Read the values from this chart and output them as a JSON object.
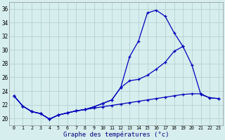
{
  "title": "Graphe des températures (°c)",
  "background_color": "#d6eeee",
  "grid_color": "#aecccc",
  "line_color": "#0000bb",
  "xlim": [
    -0.5,
    23.5
  ],
  "ylim": [
    19.0,
    37.0
  ],
  "yticks": [
    20,
    22,
    24,
    26,
    28,
    30,
    32,
    34,
    36
  ],
  "xticks": [
    0,
    1,
    2,
    3,
    4,
    5,
    6,
    7,
    8,
    9,
    10,
    11,
    12,
    13,
    14,
    15,
    16,
    17,
    18,
    19,
    20,
    21,
    22,
    23
  ],
  "curve_main_x": [
    0,
    1,
    2,
    3,
    4,
    5,
    6,
    7,
    8,
    9,
    10,
    11,
    12,
    13,
    14,
    15,
    16,
    17,
    18,
    19
  ],
  "curve_main_y": [
    23.3,
    21.8,
    21.0,
    20.7,
    19.9,
    20.5,
    20.8,
    21.1,
    21.3,
    21.7,
    22.2,
    22.7,
    24.5,
    29.0,
    31.3,
    35.4,
    35.8,
    34.9,
    32.5,
    30.5
  ],
  "curve_mid_x": [
    0,
    1,
    2,
    3,
    4,
    5,
    6,
    7,
    8,
    9,
    10,
    11,
    12,
    13,
    14,
    15,
    16,
    17,
    18,
    19,
    20,
    21,
    22,
    23
  ],
  "curve_mid_y": [
    23.3,
    21.8,
    21.0,
    20.7,
    19.9,
    20.5,
    20.8,
    21.1,
    21.3,
    21.7,
    22.2,
    22.7,
    24.5,
    25.5,
    25.7,
    26.3,
    27.2,
    28.2,
    29.8,
    30.5,
    27.8,
    23.5,
    23.0,
    22.9
  ],
  "curve_bot_x": [
    0,
    1,
    2,
    3,
    4,
    5,
    6,
    7,
    8,
    9,
    10,
    11,
    12,
    13,
    14,
    15,
    16,
    17,
    18,
    19,
    20,
    21,
    22,
    23
  ],
  "curve_bot_y": [
    23.3,
    21.8,
    21.0,
    20.7,
    19.9,
    20.5,
    20.8,
    21.1,
    21.3,
    21.5,
    21.7,
    21.9,
    22.1,
    22.3,
    22.5,
    22.7,
    22.9,
    23.1,
    23.3,
    23.5,
    23.6,
    23.6,
    23.0,
    22.9
  ]
}
